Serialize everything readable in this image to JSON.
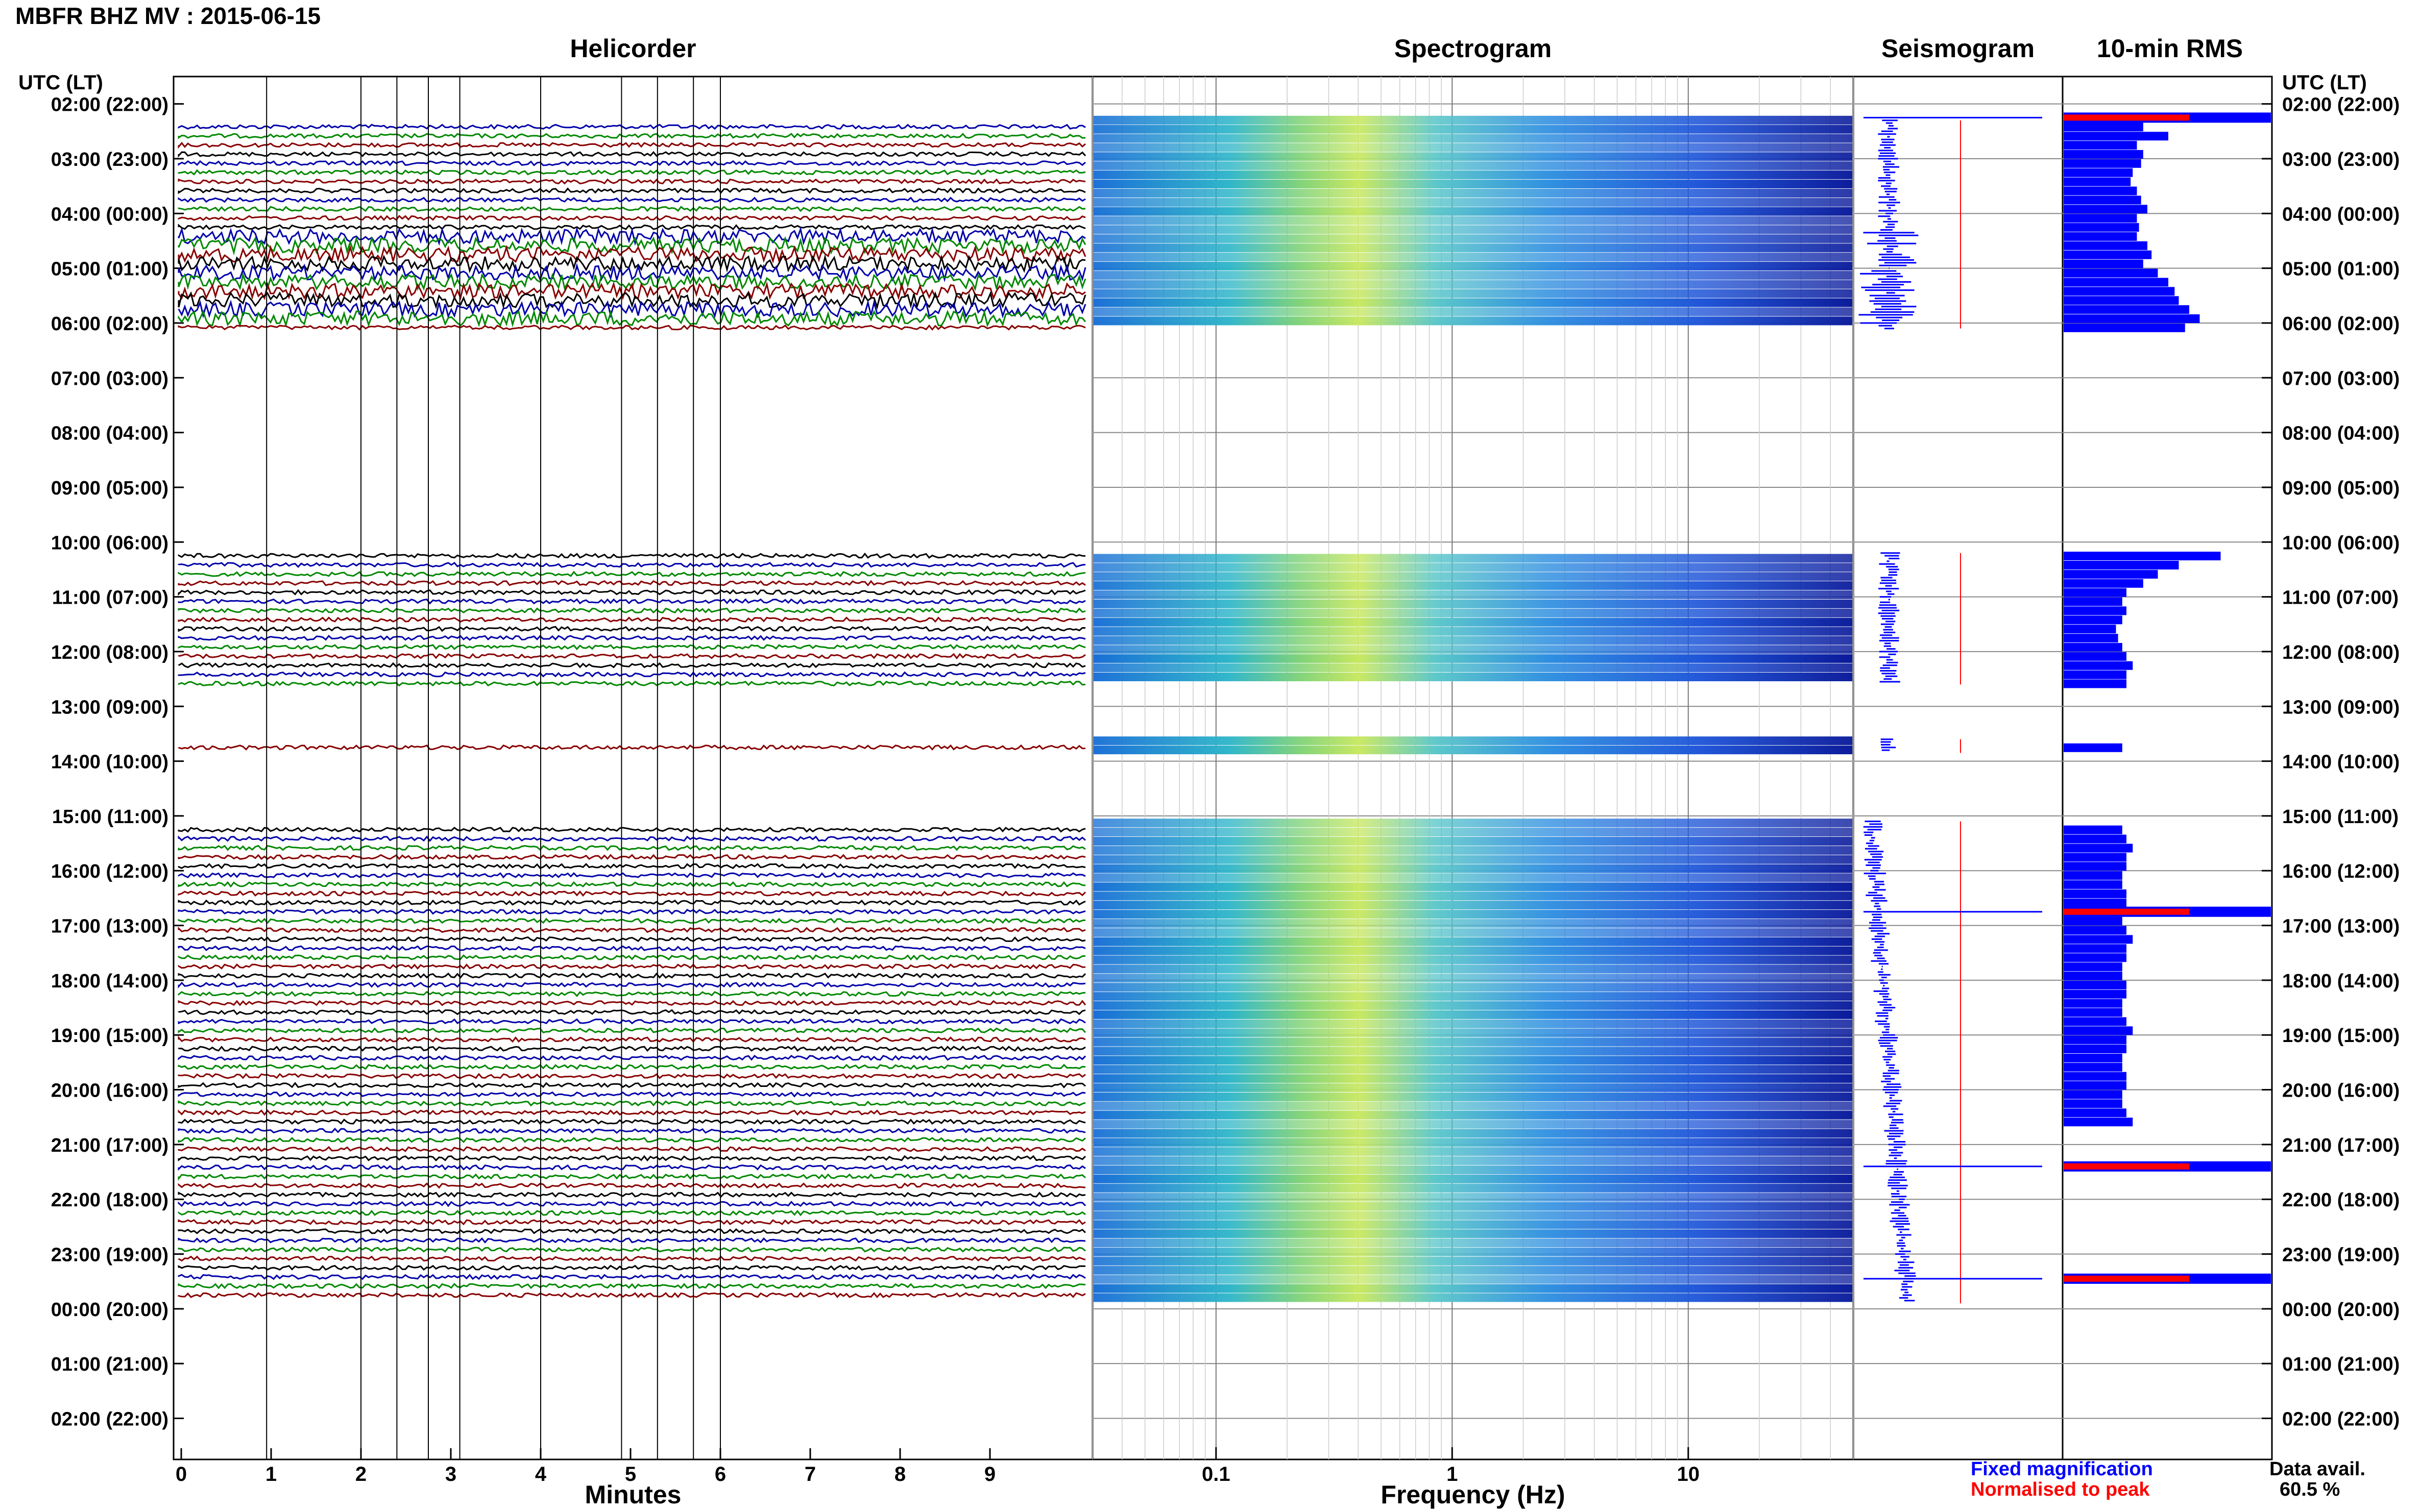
{
  "header": {
    "title": "MBFR BHZ MV : 2015-06-15"
  },
  "panels": {
    "helicorder": "Helicorder",
    "spectrogram": "Spectrogram",
    "seismogram": "Seismogram",
    "rms": "10-min RMS"
  },
  "axes": {
    "time_header": "UTC (LT)",
    "minutes_label": "Minutes",
    "frequency_label": "Frequency (Hz)"
  },
  "legend": {
    "fixed": "Fixed magnification",
    "normalised": "Normalised to peak",
    "fixed_color": "#0000ff",
    "normalised_color": "#ff0000",
    "data_avail_label": "Data avail.",
    "data_avail_value": "60.5 %"
  },
  "colors": {
    "trace_cycle": [
      "#0000aa",
      "#008800",
      "#880000",
      "#000000"
    ],
    "rms_bar": "#0000ff",
    "peak": "#ff0000"
  },
  "chart_data": {
    "type": "heatmap",
    "date": "2015-06-15",
    "time_labels": [
      "02:00 (22:00)",
      "03:00 (23:00)",
      "04:00 (00:00)",
      "05:00 (01:00)",
      "06:00 (02:00)",
      "07:00 (03:00)",
      "08:00 (04:00)",
      "09:00 (05:00)",
      "10:00 (06:00)",
      "11:00 (07:00)",
      "12:00 (08:00)",
      "13:00 (09:00)",
      "14:00 (10:00)",
      "15:00 (11:00)",
      "16:00 (12:00)",
      "17:00 (13:00)",
      "18:00 (14:00)",
      "19:00 (15:00)",
      "20:00 (16:00)",
      "21:00 (17:00)",
      "22:00 (18:00)",
      "23:00 (19:00)",
      "00:00 (20:00)",
      "01:00 (21:00)",
      "02:00 (22:00)"
    ],
    "minute_ticks": [
      "0",
      "1",
      "2",
      "3",
      "4",
      "5",
      "6",
      "7",
      "8",
      "9"
    ],
    "frequency_ticks": [
      "0.1",
      "1",
      "10"
    ],
    "frequency_range_hz": [
      0.03,
      50
    ],
    "data_segments_hours": [
      [
        2.3,
        6.1
      ],
      [
        10.2,
        12.6
      ],
      [
        13.6,
        13.85
      ],
      [
        15.1,
        23.9
      ]
    ],
    "rms_bars_10min": [
      0.38,
      0.5,
      0.35,
      0.38,
      0.37,
      0.33,
      0.32,
      0.35,
      0.37,
      0.4,
      0.35,
      0.36,
      0.35,
      0.4,
      0.42,
      0.38,
      0.45,
      0.5,
      0.53,
      0.55,
      0.6,
      0.65,
      0.58,
      0.75,
      0.55,
      0.45,
      0.38,
      0.3,
      0.28,
      0.3,
      0.28,
      0.25,
      0.26,
      0.28,
      0.3,
      0.33,
      0.3,
      0.3,
      0.28,
      0.28,
      0.3,
      0.33,
      0.3,
      0.3,
      0.28,
      0.28,
      0.3,
      0.3,
      0.28,
      0.28,
      0.3,
      0.33,
      0.3,
      0.3,
      0.28,
      0.28,
      0.3,
      0.3,
      0.28,
      0.28,
      0.3,
      0.33,
      0.3,
      0.3,
      0.28,
      0.28,
      0.3,
      0.3,
      0.28,
      0.28,
      0.3,
      0.33
    ],
    "rms_peak_hours": [
      2.25,
      16.75,
      21.4,
      23.45
    ],
    "data_availability_percent": 60.5
  }
}
